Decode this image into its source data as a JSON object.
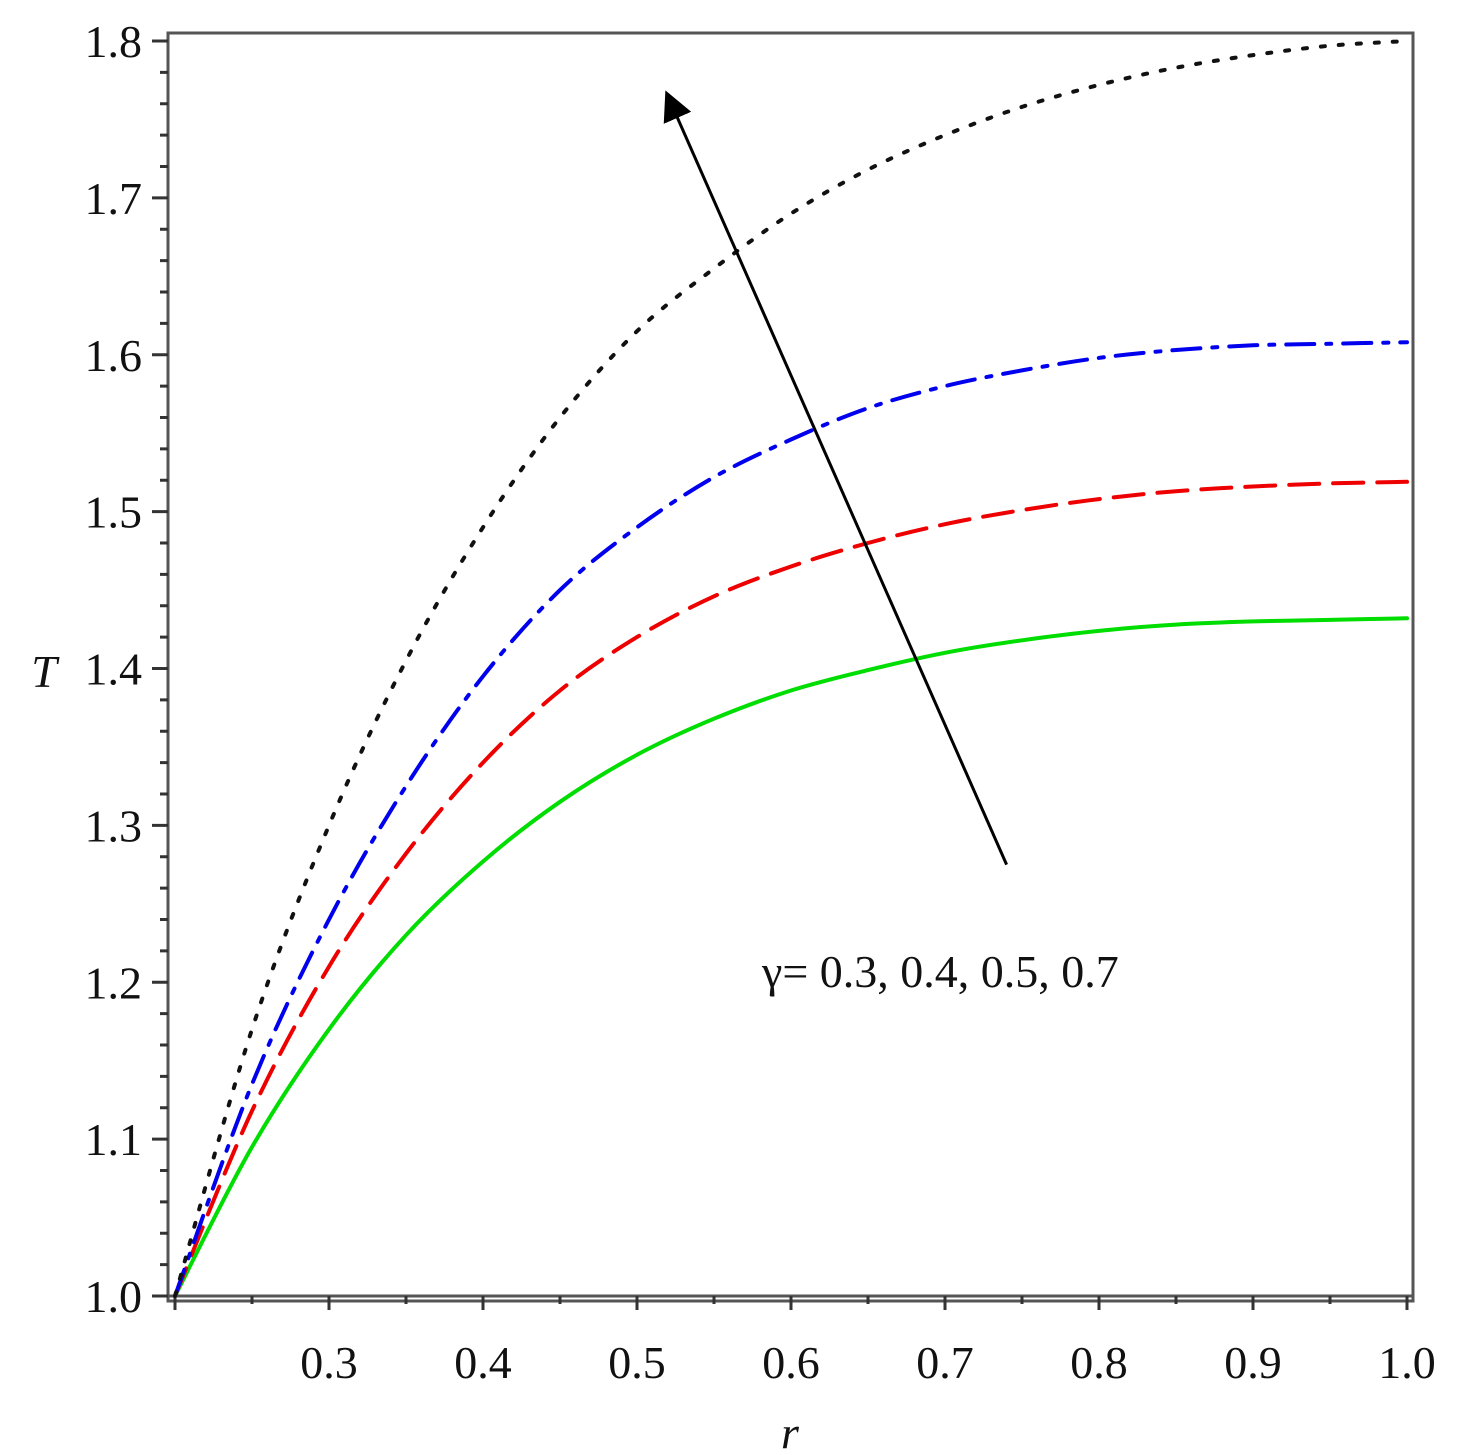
{
  "chart_data": {
    "type": "line",
    "xlabel": "r",
    "ylabel": "T",
    "xlim": [
      0.2,
      1.0
    ],
    "ylim": [
      1.0,
      1.8
    ],
    "x_ticks": [
      0.3,
      0.4,
      0.5,
      0.6,
      0.7,
      0.8,
      0.9,
      1.0
    ],
    "y_ticks": [
      1.0,
      1.1,
      1.2,
      1.3,
      1.4,
      1.5,
      1.6,
      1.7,
      1.8
    ],
    "x_tick_labels": [
      "0.3",
      "0.4",
      "0.5",
      "0.6",
      "0.7",
      "0.8",
      "0.9",
      "1.0"
    ],
    "y_tick_labels": [
      "1.0",
      "1.1",
      "1.2",
      "1.3",
      "1.4",
      "1.5",
      "1.6",
      "1.7",
      "1.8"
    ],
    "grid": false,
    "annotation": {
      "text": "γ= 0.3, 0.4, 0.5, 0.7",
      "arrow_from": [
        0.74,
        1.275
      ],
      "arrow_to": [
        0.52,
        1.765
      ]
    },
    "series": [
      {
        "color": "#00dd00",
        "style": "solid",
        "x": [
          0.2,
          0.25,
          0.3,
          0.35,
          0.4,
          0.45,
          0.5,
          0.55,
          0.6,
          0.65,
          0.7,
          0.75,
          0.8,
          0.85,
          0.9,
          0.95,
          1.0
        ],
        "y": [
          1.0,
          1.095,
          1.17,
          1.23,
          1.277,
          1.315,
          1.345,
          1.368,
          1.386,
          1.399,
          1.41,
          1.418,
          1.424,
          1.428,
          1.43,
          1.431,
          1.432
        ]
      },
      {
        "color": "#ee0000",
        "style": "dashed",
        "x": [
          0.2,
          0.25,
          0.3,
          0.35,
          0.4,
          0.45,
          0.5,
          0.55,
          0.6,
          0.65,
          0.7,
          0.75,
          0.8,
          0.85,
          0.9,
          0.95,
          1.0
        ],
        "y": [
          1.0,
          1.118,
          1.21,
          1.282,
          1.34,
          1.386,
          1.42,
          1.446,
          1.465,
          1.48,
          1.492,
          1.501,
          1.508,
          1.513,
          1.516,
          1.518,
          1.519
        ]
      },
      {
        "color": "#0000ee",
        "style": "dashdot",
        "x": [
          0.2,
          0.25,
          0.3,
          0.35,
          0.4,
          0.45,
          0.5,
          0.55,
          0.6,
          0.65,
          0.7,
          0.75,
          0.8,
          0.85,
          0.9,
          0.95,
          1.0
        ],
        "y": [
          1.0,
          1.135,
          1.24,
          1.325,
          1.395,
          1.45,
          1.49,
          1.522,
          1.546,
          1.566,
          1.58,
          1.59,
          1.598,
          1.603,
          1.606,
          1.607,
          1.608
        ]
      },
      {
        "color": "#111111",
        "style": "dotted",
        "x": [
          0.2,
          0.25,
          0.3,
          0.35,
          0.4,
          0.45,
          0.5,
          0.55,
          0.6,
          0.65,
          0.7,
          0.75,
          0.8,
          0.85,
          0.9,
          0.95,
          1.0
        ],
        "y": [
          1.0,
          1.17,
          1.3,
          1.405,
          1.49,
          1.56,
          1.615,
          1.655,
          1.69,
          1.718,
          1.74,
          1.758,
          1.772,
          1.783,
          1.791,
          1.797,
          1.8
        ]
      }
    ]
  }
}
